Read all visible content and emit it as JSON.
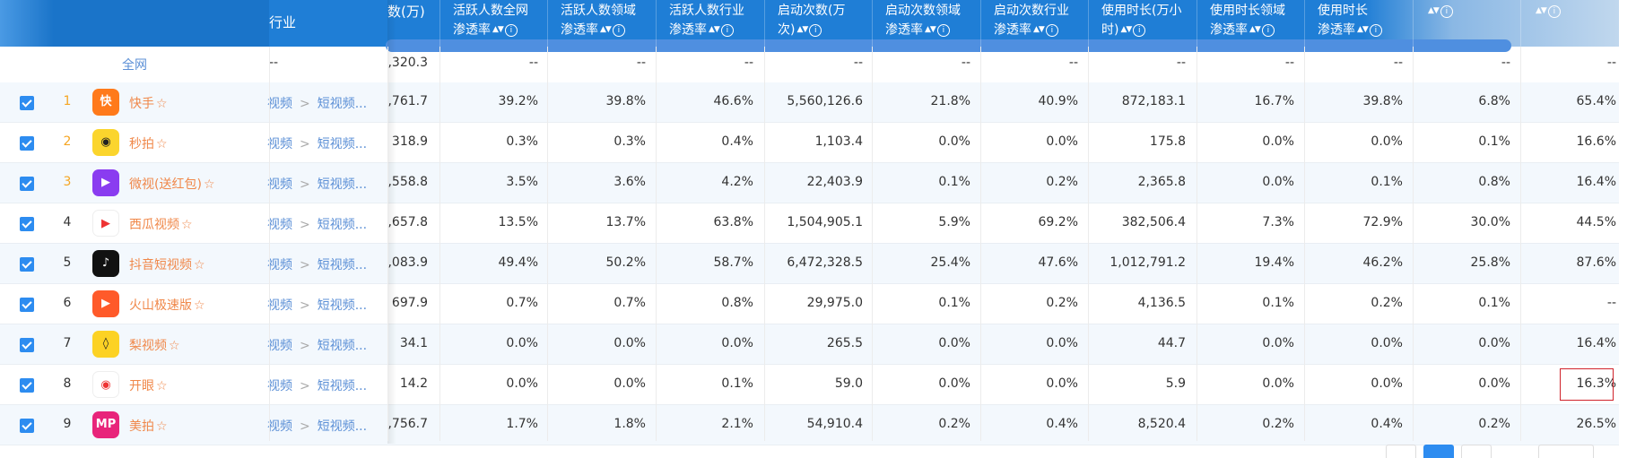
{
  "header": {
    "left_label": "行业",
    "partial_label": "数(万)",
    "columns": [
      {
        "line1": "活跃人数全网",
        "line2": "渗透率"
      },
      {
        "line1": "活跃人数领域",
        "line2": "渗透率"
      },
      {
        "line1": "活跃人数行业",
        "line2": "渗透率"
      },
      {
        "line1": "启动次数(万",
        "line2": "次)"
      },
      {
        "line1": "启动次数领域",
        "line2": "渗透率"
      },
      {
        "line1": "启动次数行业",
        "line2": "渗透率"
      },
      {
        "line1": "使用时长(万小",
        "line2": "时)"
      },
      {
        "line1": "使用时长领域",
        "line2": "渗透率"
      },
      {
        "line1": "使用时长",
        "line2": "渗透率"
      },
      {
        "line1": "",
        "line2": ""
      },
      {
        "line1": "",
        "line2": ""
      }
    ]
  },
  "total_row": {
    "label": "全网",
    "industry": "--",
    "partial": ",320.3",
    "values": [
      "--",
      "--",
      "--",
      "--",
      "--",
      "--",
      "--",
      "--",
      "--",
      "--",
      "--"
    ]
  },
  "rows": [
    {
      "rank": "1",
      "name": "快手",
      "icon": "kuaishou-icon",
      "icon_color": "#ff7a1a",
      "cat1": "视频",
      "cat2": "短视频...",
      "partial": ",761.7",
      "values": [
        "39.2%",
        "39.8%",
        "46.6%",
        "5,560,126.6",
        "21.8%",
        "40.9%",
        "872,183.1",
        "16.7%",
        "39.8%",
        "6.8%",
        "65.4%"
      ]
    },
    {
      "rank": "2",
      "name": "秒拍",
      "icon": "miaopai-icon",
      "icon_color": "#fbd52d",
      "cat1": "视频",
      "cat2": "短视频...",
      "partial": "318.9",
      "values": [
        "0.3%",
        "0.3%",
        "0.4%",
        "1,103.4",
        "0.0%",
        "0.0%",
        "175.8",
        "0.0%",
        "0.0%",
        "0.1%",
        "16.6%"
      ]
    },
    {
      "rank": "3",
      "name": "微视(送红包)",
      "icon": "weishi-icon",
      "icon_color": "#8a3cf0",
      "cat1": "视频",
      "cat2": "短视频...",
      "partial": ",558.8",
      "values": [
        "3.5%",
        "3.6%",
        "4.2%",
        "22,403.9",
        "0.1%",
        "0.2%",
        "2,365.8",
        "0.0%",
        "0.1%",
        "0.8%",
        "16.4%"
      ]
    },
    {
      "rank": "4",
      "name": "西瓜视频",
      "icon": "xigua-icon",
      "icon_color": "#ffffff",
      "cat1": "视频",
      "cat2": "短视频...",
      "partial": ",657.8",
      "values": [
        "13.5%",
        "13.7%",
        "63.8%",
        "1,504,905.1",
        "5.9%",
        "69.2%",
        "382,506.4",
        "7.3%",
        "72.9%",
        "30.0%",
        "44.5%"
      ]
    },
    {
      "rank": "5",
      "name": "抖音短视频",
      "icon": "douyin-icon",
      "icon_color": "#111111",
      "cat1": "视频",
      "cat2": "短视频...",
      "partial": ",083.9",
      "values": [
        "49.4%",
        "50.2%",
        "58.7%",
        "6,472,328.5",
        "25.4%",
        "47.6%",
        "1,012,791.2",
        "19.4%",
        "46.2%",
        "25.8%",
        "87.6%"
      ]
    },
    {
      "rank": "6",
      "name": "火山极速版",
      "icon": "huoshan-icon",
      "icon_color": "#ff5a2a",
      "cat1": "视频",
      "cat2": "短视频...",
      "partial": "697.9",
      "values": [
        "0.7%",
        "0.7%",
        "0.8%",
        "29,975.0",
        "0.1%",
        "0.2%",
        "4,136.5",
        "0.1%",
        "0.2%",
        "0.1%",
        "--"
      ]
    },
    {
      "rank": "7",
      "name": "梨视频",
      "icon": "lishipin-icon",
      "icon_color": "#fcd224",
      "cat1": "视频",
      "cat2": "短视频...",
      "partial": "34.1",
      "values": [
        "0.0%",
        "0.0%",
        "0.0%",
        "265.5",
        "0.0%",
        "0.0%",
        "44.7",
        "0.0%",
        "0.0%",
        "0.0%",
        "16.4%"
      ]
    },
    {
      "rank": "8",
      "name": "开眼",
      "icon": "kaiyan-icon",
      "icon_color": "#ffffff",
      "cat1": "视频",
      "cat2": "短视频...",
      "partial": "14.2",
      "values": [
        "0.0%",
        "0.0%",
        "0.1%",
        "59.0",
        "0.0%",
        "0.0%",
        "5.9",
        "0.0%",
        "0.0%",
        "0.0%",
        "16.3%"
      ]
    },
    {
      "rank": "9",
      "name": "美拍",
      "icon": "meipai-icon",
      "icon_color": "#e8247a",
      "cat1": "视频",
      "cat2": "短视频...",
      "partial": ",756.7",
      "values": [
        "1.7%",
        "1.8%",
        "2.1%",
        "54,910.4",
        "0.2%",
        "0.4%",
        "8,520.4",
        "0.2%",
        "0.4%",
        "0.2%",
        "26.5%"
      ]
    }
  ],
  "icon_glyphs": {
    "kuaishou": "快",
    "miaopai": "◉",
    "weishi": "▶",
    "xigua": "▶",
    "douyin": "♪",
    "huoshan": "▶",
    "lishipin": "◊",
    "kaiyan": "◉",
    "meipai": "MP"
  },
  "colors": {
    "header_blue": "#1f7ed6",
    "checkbox": "#2d8cf0",
    "name_orange": "#f0884a",
    "category_blue": "#5b8fd6",
    "highlight_red": "#d0222a"
  }
}
